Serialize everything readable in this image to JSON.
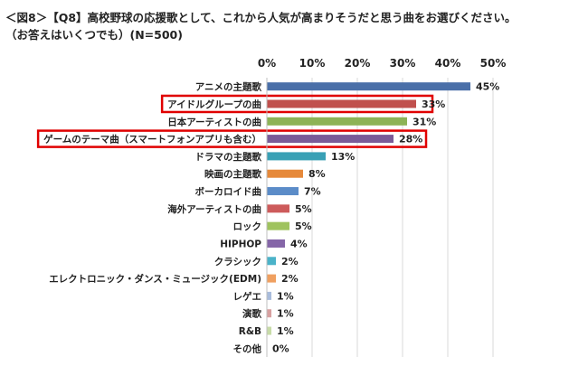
{
  "header": {
    "title_line1": "＜図8＞【Q8】高校野球の応援歌として、これから人気が高まりそうだと思う曲をお選びください。",
    "title_line2": "（お答えはいくつでも）(N=500)"
  },
  "chart_data": {
    "type": "bar",
    "orientation": "horizontal",
    "title": "",
    "xlabel": "",
    "ylabel": "",
    "xlim": [
      0,
      50
    ],
    "xticks": [
      "0%",
      "10%",
      "20%",
      "30%",
      "40%",
      "50%"
    ],
    "grid": true,
    "categories": [
      "アニメの主題歌",
      "アイドルグループの曲",
      "日本アーティストの曲",
      "ゲームのテーマ曲（スマートフォンアプリも含む）",
      "ドラマの主題歌",
      "映画の主題歌",
      "ボーカロイド曲",
      "海外アーティストの曲",
      "ロック",
      "HIPHOP",
      "クラシック",
      "エレクトロニック・ダンス・ミュージック(EDM)",
      "レゲエ",
      "演歌",
      "R&B",
      "その他"
    ],
    "values": [
      45,
      33,
      31,
      28,
      13,
      8,
      7,
      5,
      5,
      4,
      2,
      2,
      1,
      1,
      1,
      0
    ],
    "value_labels": [
      "45%",
      "33%",
      "31%",
      "28%",
      "13%",
      "8%",
      "7%",
      "5%",
      "5%",
      "4%",
      "2%",
      "2%",
      "1%",
      "1%",
      "1%",
      "0%"
    ],
    "colors": [
      "#4a6fa8",
      "#c0504d",
      "#8db356",
      "#7a5b98",
      "#39a0b5",
      "#e6893a",
      "#5b8cc8",
      "#cd5b5b",
      "#9fc35e",
      "#8566a8",
      "#4bb3c9",
      "#f0a060",
      "#a9bcdc",
      "#d8a0a0",
      "#c8dca8",
      "#b8a8cc"
    ],
    "highlighted": [
      "アイドルグループの曲",
      "ゲームのテーマ曲（スマートフォンアプリも含む）"
    ],
    "highlight_color": "#e00000"
  }
}
